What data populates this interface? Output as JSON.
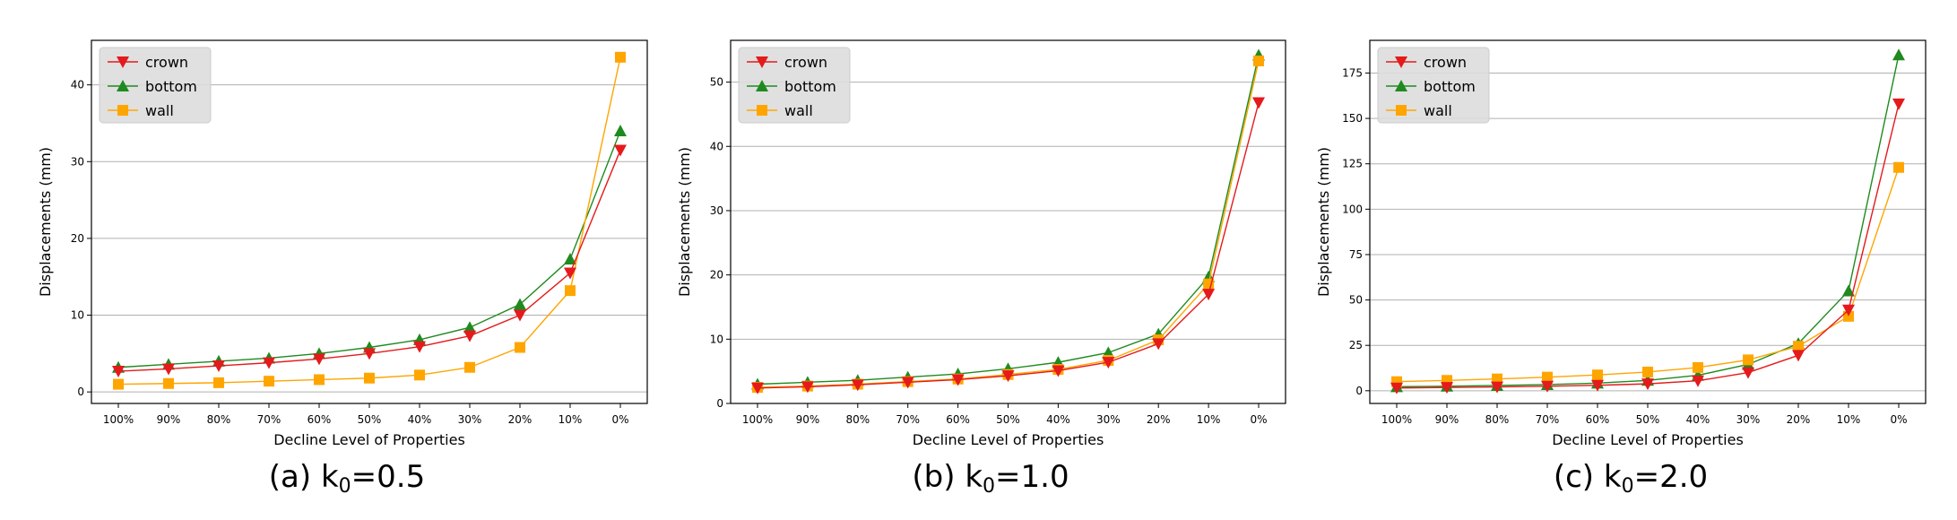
{
  "colors": {
    "crown": "#e41a1c",
    "bottom": "#1f8a1f",
    "wall": "#ffa500",
    "grid": "#b0b0b0"
  },
  "chart_data": [
    {
      "type": "line",
      "caption": {
        "prefix": "(a) k",
        "sub": "0",
        "suffix": "=0.5"
      },
      "categories": [
        "100%",
        "90%",
        "80%",
        "70%",
        "60%",
        "50%",
        "40%",
        "30%",
        "20%",
        "10%",
        "0%"
      ],
      "xlabel": "Decline Level of Properties",
      "ylabel": "Displacements (mm)",
      "ylim": [
        -1.5,
        45.8
      ],
      "yticks": [
        0,
        10,
        20,
        30,
        40
      ],
      "legend_position": "top-left",
      "grid": "y",
      "series": [
        {
          "name": "crown",
          "marker": "triangle-down",
          "values": [
            2.7,
            3.0,
            3.4,
            3.8,
            4.3,
            5.0,
            5.9,
            7.3,
            10.0,
            15.5,
            31.5
          ]
        },
        {
          "name": "bottom",
          "marker": "triangle-up",
          "values": [
            3.2,
            3.6,
            4.0,
            4.4,
            5.0,
            5.8,
            6.8,
            8.4,
            11.4,
            17.3,
            34.0
          ]
        },
        {
          "name": "wall",
          "marker": "square",
          "values": [
            1.0,
            1.1,
            1.2,
            1.4,
            1.6,
            1.8,
            2.2,
            3.2,
            5.8,
            13.2,
            43.6
          ]
        }
      ]
    },
    {
      "type": "line",
      "caption": {
        "prefix": "(b) k",
        "sub": "0",
        "suffix": "=1.0"
      },
      "categories": [
        "100%",
        "90%",
        "80%",
        "70%",
        "60%",
        "50%",
        "40%",
        "30%",
        "20%",
        "10%",
        "0%"
      ],
      "xlabel": "Decline Level of Properties",
      "ylabel": "Displacements (mm)",
      "ylim": [
        0,
        56.5
      ],
      "yticks": [
        0,
        10,
        20,
        30,
        40,
        50
      ],
      "legend_position": "top-left",
      "grid": "y",
      "series": [
        {
          "name": "crown",
          "marker": "triangle-down",
          "values": [
            2.4,
            2.6,
            2.9,
            3.3,
            3.7,
            4.3,
            5.1,
            6.4,
            9.3,
            17.0,
            46.8
          ]
        },
        {
          "name": "bottom",
          "marker": "triangle-up",
          "values": [
            3.0,
            3.3,
            3.6,
            4.1,
            4.6,
            5.4,
            6.4,
            7.9,
            10.8,
            19.7,
            54.2
          ]
        },
        {
          "name": "wall",
          "marker": "square",
          "values": [
            2.5,
            2.7,
            3.0,
            3.4,
            3.8,
            4.5,
            5.3,
            6.7,
            9.9,
            18.6,
            53.3
          ]
        }
      ]
    },
    {
      "type": "line",
      "caption": {
        "prefix": "(c) k",
        "sub": "0",
        "suffix": "=2.0"
      },
      "categories": [
        "100%",
        "90%",
        "80%",
        "70%",
        "60%",
        "50%",
        "40%",
        "30%",
        "20%",
        "10%",
        "0%"
      ],
      "xlabel": "Decline Level of Properties",
      "ylabel": "Displacements (mm)",
      "ylim": [
        -7,
        193
      ],
      "yticks": [
        0,
        25,
        50,
        75,
        100,
        125,
        150,
        175
      ],
      "legend_position": "top-left",
      "grid": "y",
      "series": [
        {
          "name": "crown",
          "marker": "triangle-down",
          "values": [
            1.5,
            1.8,
            2.1,
            2.5,
            3.0,
            3.8,
            5.5,
            10.0,
            19.5,
            44.5,
            158.0
          ]
        },
        {
          "name": "bottom",
          "marker": "triangle-up",
          "values": [
            2.2,
            2.5,
            2.9,
            3.4,
            4.2,
            5.7,
            8.5,
            14.5,
            26.0,
            55.0,
            185.0
          ]
        },
        {
          "name": "wall",
          "marker": "square",
          "values": [
            5.0,
            5.7,
            6.5,
            7.5,
            8.7,
            10.3,
            12.8,
            17.0,
            24.5,
            41.0,
            123.0
          ]
        }
      ]
    }
  ]
}
